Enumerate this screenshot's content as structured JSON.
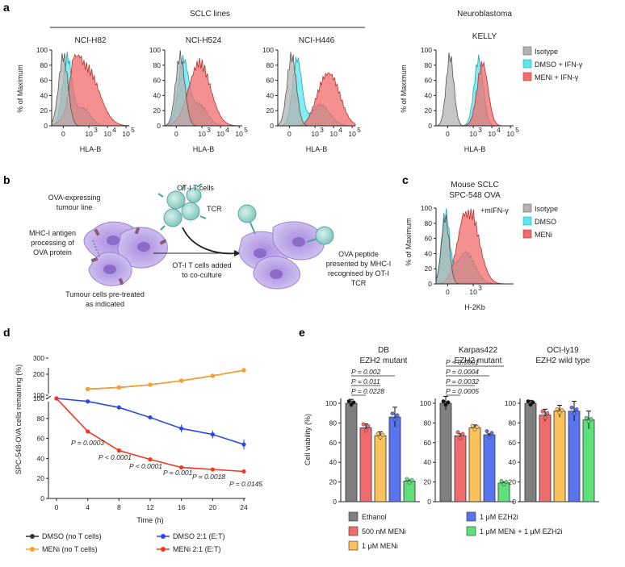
{
  "panel_a": {
    "label": "a",
    "group_title": "SCLC lines",
    "nb_title1": "Neuroblastoma",
    "nb_title2": "KELLY",
    "lines": [
      "NCI-H82",
      "NCI-H524",
      "NCI-H446"
    ],
    "y_axis_label": "% of Maximum",
    "y_ticks": [
      "0",
      "20",
      "40",
      "60",
      "80",
      "100"
    ],
    "x_axis_label": "HLA-B",
    "x_ticks": [
      "0",
      "10",
      "10",
      "10"
    ],
    "x_exps": [
      "3",
      "4",
      "5"
    ],
    "legend": [
      "Isotype",
      "DMSO + IFN-γ",
      "MENi + IFN-γ"
    ],
    "colors": {
      "isotype": "#b3b3b3",
      "dmso": "#5ce6ee",
      "meni": "#f26b6b"
    }
  },
  "panel_b": {
    "label": "b",
    "tcells": "OT-I T cells",
    "tumour1": "OVA-expressing",
    "tumour2": "tumour line",
    "mhc1": "MHC-I antigen",
    "mhc2": "processing of",
    "mhc3": "OVA protein",
    "tcr": "TCR",
    "added1": "OT-I T cells added",
    "added2": "to co-culture",
    "pre1": "Tumour cells pre-treated",
    "pre2": "as indicated",
    "ova1": "OVA peptide",
    "ova2": "presented by MHC-I",
    "ova3": "recognised by OT-I",
    "ova4": "TCR"
  },
  "panel_c": {
    "label": "c",
    "title1": "Mouse SCLC",
    "title2": "SPC-548 OVA",
    "treatment": "+mIFN-γ",
    "y_axis_label": "% of Maximum",
    "x_axis_label": "H-2Kb",
    "x_ticks": [
      "0",
      "10"
    ],
    "x_exps": [
      "3"
    ],
    "legend": [
      "Isotype",
      "DMSO",
      "MENi"
    ]
  },
  "chart_data": [
    {
      "type": "line",
      "title": "",
      "panel": "d",
      "xlabel": "Time (h)",
      "ylabel": "SPC-548-OVA cells remaining (%)",
      "x_ticks": [
        "0",
        "4",
        "8",
        "12",
        "16",
        "20",
        "24"
      ],
      "y_ticks": [
        "0",
        "20",
        "40",
        "60",
        "80",
        "100",
        "200",
        "300"
      ],
      "series": [
        {
          "name": "DMSO (no T cells)",
          "color": "#a0642a",
          "x": [
            4,
            8,
            12,
            16,
            20,
            24
          ],
          "values": [
            108,
            118,
            135,
            160,
            190,
            225
          ]
        },
        {
          "name": "MENi (no T cells)",
          "color": "#f5a030",
          "x": [
            4,
            8,
            12,
            16,
            20,
            24
          ],
          "values": [
            108,
            118,
            135,
            160,
            190,
            225
          ]
        },
        {
          "name": "DMSO 2:1 (E:T)",
          "color": "#2948e8",
          "x": [
            0,
            4,
            8,
            12,
            16,
            20,
            24
          ],
          "values": [
            100,
            97,
            91,
            81,
            70,
            64,
            54
          ],
          "errors": [
            0,
            1,
            1,
            1,
            4,
            4,
            5
          ]
        },
        {
          "name": "MENi 2:1 (E:T)",
          "color": "#ee3820",
          "x": [
            0,
            4,
            8,
            12,
            16,
            20,
            24
          ],
          "values": [
            100,
            67,
            48,
            39,
            31,
            29,
            27
          ],
          "errors": [
            0,
            1,
            1,
            1,
            1,
            1,
            1
          ]
        }
      ],
      "annotations": [
        "P = 0.0003",
        "P < 0.0001",
        "P < 0.0001",
        "P = 0.001",
        "P = 0.0018",
        "P = 0.0145"
      ]
    },
    {
      "type": "bar",
      "panel": "e",
      "ylabel": "Cell viability (%)",
      "y_ticks": [
        "0",
        "20",
        "40",
        "60",
        "80",
        "100"
      ],
      "categories": [
        "Ethanol",
        "500 nM MENi",
        "1 μM MENi",
        "1 μM EZH2i",
        "1 μM MENi + 1 μM EZH2i"
      ],
      "colors": [
        "#7f7f7f",
        "#f06b6b",
        "#fbc15b",
        "#5a73ef",
        "#5de07a"
      ],
      "groups": [
        {
          "title1": "DB",
          "title2": "EZH2 mutant",
          "values": [
            100,
            75,
            67,
            86,
            21
          ],
          "errors": [
            4,
            4,
            4,
            10,
            1
          ],
          "pvalues": [
            "P = 0.002",
            "P = 0.011",
            "P = 0.0228"
          ]
        },
        {
          "title1": "Karpas422",
          "title2": "EZH2 mutant",
          "values": [
            100,
            67,
            75,
            68,
            19
          ],
          "errors": [
            7,
            2,
            3,
            1,
            1
          ],
          "pvalues": [
            "P < 0.0001",
            "P = 0.0004",
            "P = 0.0032",
            "P = 0.0005"
          ]
        },
        {
          "title1": "OCI-ly19",
          "title2": "EZH2 wild type",
          "values": [
            100,
            88,
            92,
            92,
            83
          ],
          "errors": [
            3,
            6,
            6,
            10,
            9
          ],
          "pvalues": []
        }
      ]
    }
  ],
  "panel_d": {
    "label": "d"
  },
  "panel_e": {
    "label": "e"
  }
}
